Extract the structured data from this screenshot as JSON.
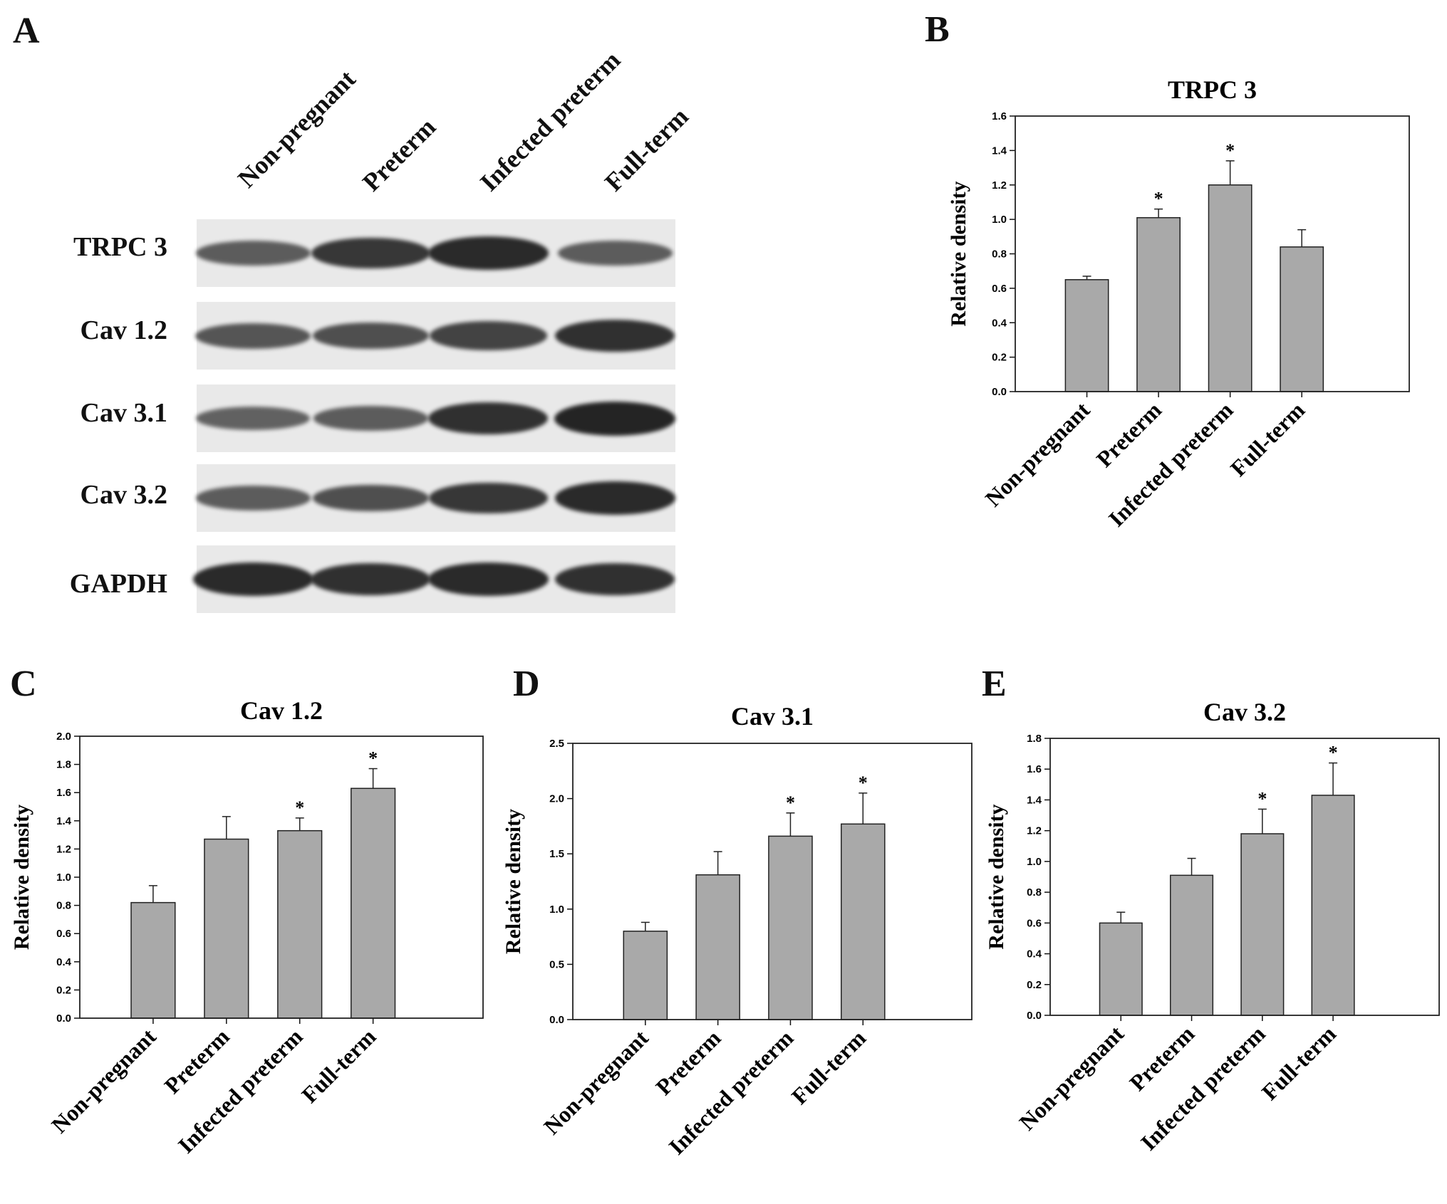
{
  "figure": {
    "panel_letters": [
      "A",
      "B",
      "C",
      "D",
      "E"
    ]
  },
  "western_blot": {
    "lanes": [
      "Non-pregnant",
      "Preterm",
      "Infected preterm",
      "Full-term"
    ],
    "proteins": [
      "TRPC 3",
      "Cav 1.2",
      "Cav 3.1",
      "Cav 3.2",
      "GAPDH"
    ],
    "band_intensity": [
      [
        0.55,
        0.85,
        0.95,
        0.55
      ],
      [
        0.6,
        0.65,
        0.75,
        0.9
      ],
      [
        0.5,
        0.55,
        0.9,
        1.0
      ],
      [
        0.55,
        0.65,
        0.85,
        0.95
      ],
      [
        0.95,
        0.9,
        0.95,
        0.9
      ]
    ],
    "band_color": "#1a1a1a"
  },
  "chart_data": [
    {
      "panel": "B",
      "type": "bar",
      "title": "TRPC 3",
      "ylabel": "Relative density",
      "categories": [
        "Non-pregnant",
        "Preterm",
        "Infected preterm",
        "Full-term"
      ],
      "values": [
        0.65,
        1.01,
        1.2,
        0.84
      ],
      "errors": [
        0.02,
        0.05,
        0.14,
        0.1
      ],
      "significant": [
        "",
        "*",
        "*",
        ""
      ],
      "ylim": [
        0,
        1.6
      ],
      "yticks": [
        "0.0",
        "0.2",
        "0.4",
        "0.6",
        "0.8",
        "1.0",
        "1.2",
        "1.4",
        "1.6"
      ],
      "bar_color": "#a9a9a9"
    },
    {
      "panel": "C",
      "type": "bar",
      "title": "Cav 1.2",
      "ylabel": "Relative density",
      "categories": [
        "Non-pregnant",
        "Preterm",
        "Infected preterm",
        "Full-term"
      ],
      "values": [
        0.82,
        1.27,
        1.33,
        1.63
      ],
      "errors": [
        0.12,
        0.16,
        0.09,
        0.14
      ],
      "significant": [
        "",
        "",
        "*",
        "*"
      ],
      "ylim": [
        0,
        2.0
      ],
      "yticks": [
        "0.0",
        "0.2",
        "0.4",
        "0.6",
        "0.8",
        "1.0",
        "1.2",
        "1.4",
        "1.6",
        "1.8",
        "2.0"
      ],
      "bar_color": "#a9a9a9"
    },
    {
      "panel": "D",
      "type": "bar",
      "title": "Cav 3.1",
      "ylabel": "Relative density",
      "categories": [
        "Non-pregnant",
        "Preterm",
        "Infected preterm",
        "Full-term"
      ],
      "values": [
        0.8,
        1.31,
        1.66,
        1.77
      ],
      "errors": [
        0.08,
        0.21,
        0.21,
        0.28
      ],
      "significant": [
        "",
        "",
        "*",
        "*"
      ],
      "ylim": [
        0,
        2.5
      ],
      "yticks": [
        "0.0",
        "0.5",
        "1.0",
        "1.5",
        "2.0",
        "2.5"
      ],
      "bar_color": "#a9a9a9"
    },
    {
      "panel": "E",
      "type": "bar",
      "title": "Cav 3.2",
      "ylabel": "Relative density",
      "categories": [
        "Non-pregnant",
        "Preterm",
        "Infected preterm",
        "Full-term"
      ],
      "values": [
        0.6,
        0.91,
        1.18,
        1.43
      ],
      "errors": [
        0.07,
        0.11,
        0.16,
        0.21
      ],
      "significant": [
        "",
        "",
        "*",
        "*"
      ],
      "ylim": [
        0,
        1.8
      ],
      "yticks": [
        "0.0",
        "0.2",
        "0.4",
        "0.6",
        "0.8",
        "1.0",
        "1.2",
        "1.4",
        "1.6",
        "1.8"
      ],
      "bar_color": "#a9a9a9"
    }
  ]
}
